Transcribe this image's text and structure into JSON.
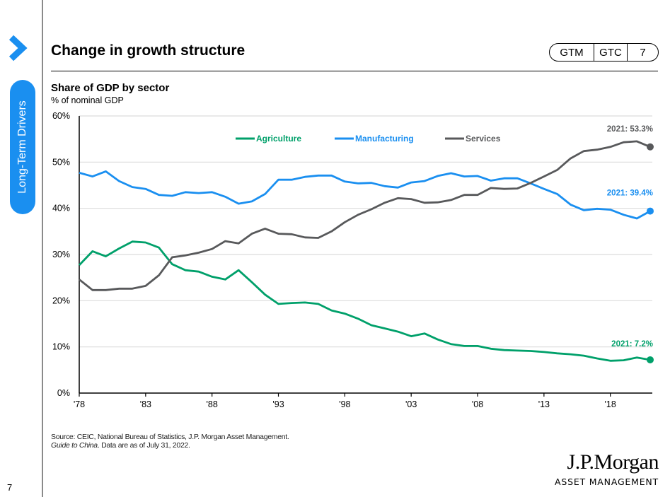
{
  "sidebar": {
    "section_label": "Long-Term Drivers",
    "page_number": "7",
    "accent_color": "#1a8ff0"
  },
  "header": {
    "title": "Change in growth structure",
    "badge": [
      "GTM",
      "GTC",
      "7"
    ]
  },
  "chart_data": {
    "type": "line",
    "title": "Share of GDP by sector",
    "subtitle": "% of nominal GDP",
    "xlabel": "",
    "ylabel": "% of nominal GDP",
    "ylim": [
      0,
      60
    ],
    "xlim": [
      1978,
      2021
    ],
    "y_ticks": [
      "0%",
      "10%",
      "20%",
      "30%",
      "40%",
      "50%",
      "60%"
    ],
    "y_tick_values": [
      0,
      10,
      20,
      30,
      40,
      50,
      60
    ],
    "x_ticks": [
      "'78",
      "'83",
      "'88",
      "'93",
      "'98",
      "'03",
      "'08",
      "'13",
      "'18"
    ],
    "x_tick_values": [
      1978,
      1983,
      1988,
      1993,
      1998,
      2003,
      2008,
      2013,
      2018
    ],
    "grid": "horizontal",
    "legend_position": "top-center",
    "x": [
      1978,
      1979,
      1980,
      1981,
      1982,
      1983,
      1984,
      1985,
      1986,
      1987,
      1988,
      1989,
      1990,
      1991,
      1992,
      1993,
      1994,
      1995,
      1996,
      1997,
      1998,
      1999,
      2000,
      2001,
      2002,
      2003,
      2004,
      2005,
      2006,
      2007,
      2008,
      2009,
      2010,
      2011,
      2012,
      2013,
      2014,
      2015,
      2016,
      2017,
      2018,
      2019,
      2020,
      2021
    ],
    "series": [
      {
        "name": "Agriculture",
        "color": "#00a06a",
        "values": [
          27.7,
          30.7,
          29.6,
          31.3,
          32.8,
          32.6,
          31.5,
          27.9,
          26.6,
          26.3,
          25.2,
          24.6,
          26.6,
          24.0,
          21.3,
          19.3,
          19.5,
          19.6,
          19.3,
          17.9,
          17.2,
          16.1,
          14.7,
          14.0,
          13.3,
          12.3,
          12.9,
          11.6,
          10.6,
          10.2,
          10.2,
          9.6,
          9.3,
          9.2,
          9.1,
          8.9,
          8.6,
          8.4,
          8.1,
          7.5,
          7.0,
          7.1,
          7.7,
          7.2
        ],
        "end_label": "2021: 7.2%"
      },
      {
        "name": "Manufacturing",
        "color": "#1a8ff0",
        "values": [
          47.7,
          46.9,
          48.0,
          45.9,
          44.6,
          44.2,
          42.9,
          42.7,
          43.5,
          43.3,
          43.5,
          42.5,
          41.0,
          41.5,
          43.1,
          46.2,
          46.2,
          46.8,
          47.1,
          47.1,
          45.8,
          45.4,
          45.5,
          44.8,
          44.5,
          45.6,
          45.9,
          47.0,
          47.6,
          46.9,
          47.0,
          46.0,
          46.5,
          46.5,
          45.4,
          44.2,
          43.1,
          40.8,
          39.6,
          39.9,
          39.7,
          38.6,
          37.8,
          39.4
        ],
        "end_label": "2021: 39.4%"
      },
      {
        "name": "Services",
        "color": "#58595b",
        "values": [
          24.6,
          22.3,
          22.3,
          22.6,
          22.6,
          23.2,
          25.5,
          29.4,
          29.8,
          30.4,
          31.2,
          32.9,
          32.4,
          34.5,
          35.6,
          34.5,
          34.4,
          33.7,
          33.6,
          35.0,
          37.0,
          38.6,
          39.8,
          41.2,
          42.2,
          42.0,
          41.2,
          41.3,
          41.8,
          42.9,
          42.9,
          44.4,
          44.2,
          44.3,
          45.5,
          46.9,
          48.3,
          50.8,
          52.4,
          52.7,
          53.3,
          54.3,
          54.5,
          53.3
        ],
        "end_label": "2021: 53.3%"
      }
    ]
  },
  "footer": {
    "source_line1": "Source: CEIC, National Bureau of Statistics, J.P. Morgan Asset Management.",
    "source_italic": "Guide to China",
    "source_line2_rest": ". Data are as of July 31, 2022.",
    "logo_main": "J.P.Morgan",
    "logo_sub": "ASSET MANAGEMENT"
  }
}
